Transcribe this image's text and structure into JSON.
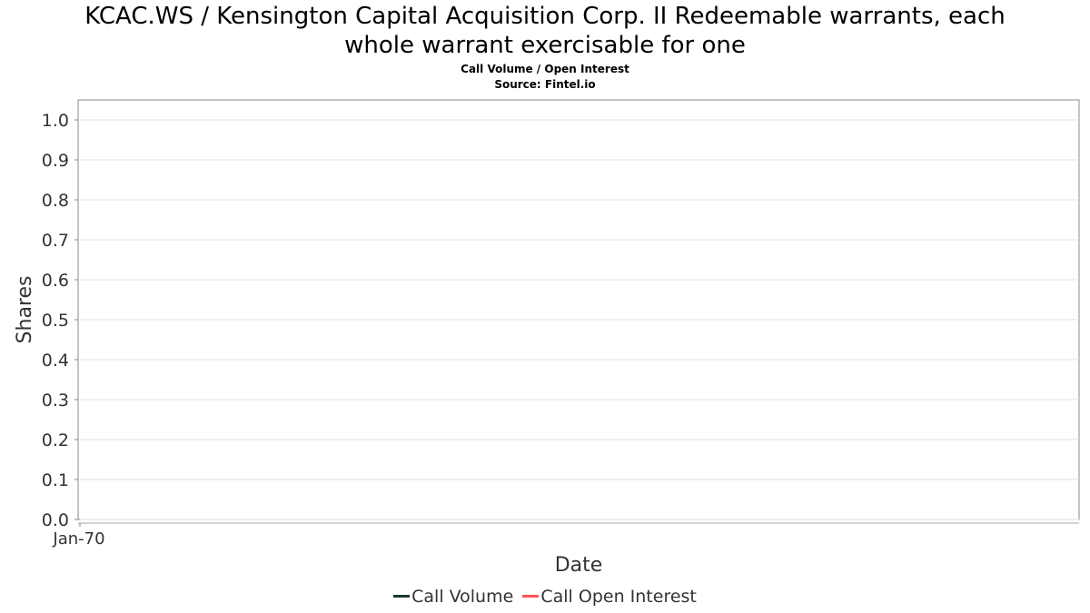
{
  "chart_data": {
    "type": "line",
    "title": "KCAC.WS / Kensington Capital Acquisition Corp. II Redeemable warrants, each whole warrant exercisable for one",
    "title_lines": [
      "KCAC.WS / Kensington Capital Acquisition Corp. II Redeemable warrants, each",
      "whole warrant exercisable for one"
    ],
    "subtitle": "Call Volume / Open Interest",
    "source": "Source: Fintel.io",
    "xlabel": "Date",
    "ylabel": "Shares",
    "ylim": [
      0,
      1
    ],
    "yticks": [
      "0.0",
      "0.1",
      "0.2",
      "0.3",
      "0.4",
      "0.5",
      "0.6",
      "0.7",
      "0.8",
      "0.9",
      "1.0"
    ],
    "xticks": [
      "Jan-70"
    ],
    "grid": true,
    "legend_position": "bottom",
    "series": [
      {
        "name": "Call Volume",
        "color": "#1a3a2a",
        "values": []
      },
      {
        "name": "Call Open Interest",
        "color": "#ff5555",
        "values": []
      }
    ]
  }
}
